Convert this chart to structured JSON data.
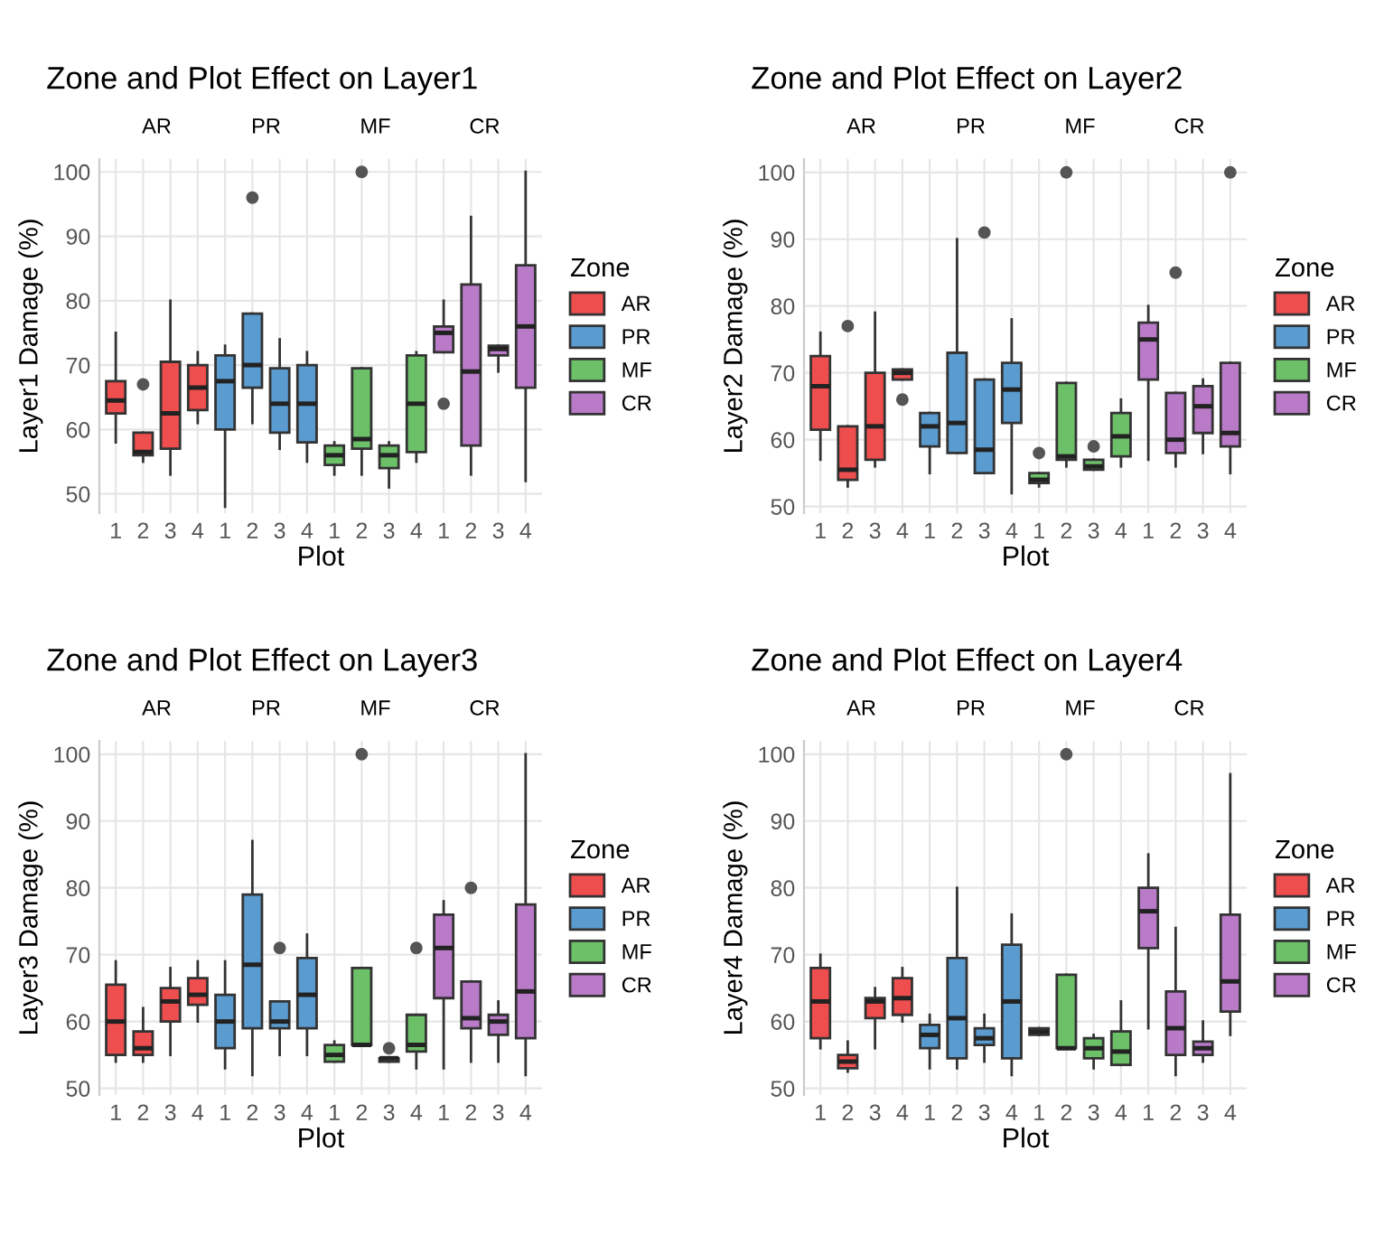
{
  "chart_data": [
    {
      "type": "box",
      "title": "Zone and Plot Effect on Layer1",
      "xlabel": "Plot",
      "ylabel": "Layer1 Damage (%)",
      "legend_title": "Zone",
      "legend": "right",
      "grid": true,
      "annotations": [
        "AR",
        "PR",
        "MF",
        "CR"
      ],
      "categories": [
        "1",
        "2",
        "3",
        "4",
        "1",
        "2",
        "3",
        "4",
        "1",
        "2",
        "3",
        "4",
        "1",
        "2",
        "3",
        "4"
      ],
      "ylim": [
        47,
        102
      ],
      "yticks": [
        50,
        60,
        70,
        80,
        90,
        100
      ],
      "series": [
        {
          "name": "AR",
          "color": "#ef4e4e",
          "boxes": [
            {
              "low": 58,
              "q1": 62.5,
              "median": 64.5,
              "q3": 67.5,
              "high": 75
            },
            {
              "low": 55,
              "q1": 56,
              "median": 56.5,
              "q3": 59.5,
              "high": 59.5,
              "outliers": [
                67
              ]
            },
            {
              "low": 53,
              "q1": 57,
              "median": 62.5,
              "q3": 70.5,
              "high": 80
            },
            {
              "low": 61,
              "q1": 63,
              "median": 66.5,
              "q3": 70,
              "high": 72
            },
            null,
            null,
            null,
            null,
            null,
            null,
            null,
            null,
            null,
            null,
            null,
            null
          ]
        },
        {
          "name": "PR",
          "color": "#5a9bd0",
          "boxes": [
            null,
            null,
            null,
            null,
            {
              "low": 48,
              "q1": 60,
              "median": 67.5,
              "q3": 71.5,
              "high": 73
            },
            {
              "low": 61,
              "q1": 66.5,
              "median": 70,
              "q3": 78,
              "high": 78,
              "outliers": [
                96
              ]
            },
            {
              "low": 57,
              "q1": 59.5,
              "median": 64,
              "q3": 69.5,
              "high": 74
            },
            {
              "low": 55,
              "q1": 58,
              "median": 64,
              "q3": 70,
              "high": 72
            },
            null,
            null,
            null,
            null,
            null,
            null,
            null,
            null
          ]
        },
        {
          "name": "MF",
          "color": "#6cc068",
          "boxes": [
            null,
            null,
            null,
            null,
            null,
            null,
            null,
            null,
            {
              "low": 53,
              "q1": 54.5,
              "median": 56,
              "q3": 57.5,
              "high": 58
            },
            {
              "low": 53,
              "q1": 57,
              "median": 58.5,
              "q3": 69.5,
              "high": 69.5,
              "outliers": [
                100
              ]
            },
            {
              "low": 51,
              "q1": 54,
              "median": 56,
              "q3": 57.5,
              "high": 58
            },
            {
              "low": 55,
              "q1": 56.5,
              "median": 64,
              "q3": 71.5,
              "high": 72
            },
            null,
            null,
            null,
            null
          ]
        },
        {
          "name": "CR",
          "color": "#b97ac8",
          "boxes": [
            null,
            null,
            null,
            null,
            null,
            null,
            null,
            null,
            null,
            null,
            null,
            null,
            {
              "low": 72,
              "q1": 72,
              "median": 75,
              "q3": 76,
              "high": 80,
              "outliers": [
                64
              ]
            },
            {
              "low": 53,
              "q1": 57.5,
              "median": 69,
              "q3": 82.5,
              "high": 93
            },
            {
              "low": 69,
              "q1": 71.5,
              "median": 72.5,
              "q3": 73,
              "high": 73
            },
            {
              "low": 52,
              "q1": 66.5,
              "median": 76,
              "q3": 85.5,
              "high": 100
            }
          ]
        }
      ]
    },
    {
      "type": "box",
      "title": "Zone and Plot Effect on Layer2",
      "xlabel": "Plot",
      "ylabel": "Layer2 Damage (%)",
      "legend_title": "Zone",
      "legend": "right",
      "grid": true,
      "annotations": [
        "AR",
        "PR",
        "MF",
        "CR"
      ],
      "categories": [
        "1",
        "2",
        "3",
        "4",
        "1",
        "2",
        "3",
        "4",
        "1",
        "2",
        "3",
        "4",
        "1",
        "2",
        "3",
        "4"
      ],
      "ylim": [
        49,
        102
      ],
      "yticks": [
        50,
        60,
        70,
        80,
        90,
        100
      ],
      "series": [
        {
          "name": "AR",
          "color": "#ef4e4e",
          "boxes": [
            {
              "low": 57,
              "q1": 61.5,
              "median": 68,
              "q3": 72.5,
              "high": 76
            },
            {
              "low": 53,
              "q1": 54,
              "median": 55.5,
              "q3": 62,
              "high": 62,
              "outliers": [
                77
              ]
            },
            {
              "low": 56,
              "q1": 57,
              "median": 62,
              "q3": 70,
              "high": 79
            },
            {
              "low": 69,
              "q1": 69,
              "median": 70,
              "q3": 70.5,
              "high": 70.5,
              "outliers": [
                66
              ]
            },
            null,
            null,
            null,
            null,
            null,
            null,
            null,
            null,
            null,
            null,
            null,
            null
          ]
        },
        {
          "name": "PR",
          "color": "#5a9bd0",
          "boxes": [
            null,
            null,
            null,
            null,
            {
              "low": 55,
              "q1": 59,
              "median": 62,
              "q3": 64,
              "high": 64
            },
            {
              "low": 58,
              "q1": 58,
              "median": 62.5,
              "q3": 73,
              "high": 90
            },
            {
              "low": 55,
              "q1": 55,
              "median": 58.5,
              "q3": 69,
              "high": 69,
              "outliers": [
                91
              ]
            },
            {
              "low": 52,
              "q1": 62.5,
              "median": 67.5,
              "q3": 71.5,
              "high": 78
            },
            null,
            null,
            null,
            null,
            null,
            null,
            null,
            null
          ]
        },
        {
          "name": "MF",
          "color": "#6cc068",
          "boxes": [
            null,
            null,
            null,
            null,
            null,
            null,
            null,
            null,
            {
              "low": 53,
              "q1": 53.5,
              "median": 54,
              "q3": 55,
              "high": 55,
              "outliers": [
                58
              ]
            },
            {
              "low": 56,
              "q1": 57,
              "median": 57.5,
              "q3": 68.5,
              "high": 68.5,
              "outliers": [
                100
              ]
            },
            {
              "low": 55.5,
              "q1": 55.5,
              "median": 56,
              "q3": 57,
              "high": 57,
              "outliers": [
                59
              ]
            },
            {
              "low": 56,
              "q1": 57.5,
              "median": 60.5,
              "q3": 64,
              "high": 66
            },
            null,
            null,
            null,
            null
          ]
        },
        {
          "name": "CR",
          "color": "#b97ac8",
          "boxes": [
            null,
            null,
            null,
            null,
            null,
            null,
            null,
            null,
            null,
            null,
            null,
            null,
            {
              "low": 57,
              "q1": 69,
              "median": 75,
              "q3": 77.5,
              "high": 80
            },
            {
              "low": 56,
              "q1": 58,
              "median": 60,
              "q3": 67,
              "high": 67,
              "outliers": [
                85
              ]
            },
            {
              "low": 58,
              "q1": 61,
              "median": 65,
              "q3": 68,
              "high": 69
            },
            {
              "low": 55,
              "q1": 59,
              "median": 61,
              "q3": 71.5,
              "high": 71.5,
              "outliers": [
                100
              ]
            }
          ]
        }
      ]
    },
    {
      "type": "box",
      "title": "Zone and Plot Effect on Layer3",
      "xlabel": "Plot",
      "ylabel": "Layer3 Damage (%)",
      "legend_title": "Zone",
      "legend": "right",
      "grid": true,
      "annotations": [
        "AR",
        "PR",
        "MF",
        "CR"
      ],
      "categories": [
        "1",
        "2",
        "3",
        "4",
        "1",
        "2",
        "3",
        "4",
        "1",
        "2",
        "3",
        "4",
        "1",
        "2",
        "3",
        "4"
      ],
      "ylim": [
        49,
        102
      ],
      "yticks": [
        50,
        60,
        70,
        80,
        90,
        100
      ],
      "series": [
        {
          "name": "AR",
          "color": "#ef4e4e",
          "boxes": [
            {
              "low": 54,
              "q1": 55,
              "median": 60,
              "q3": 65.5,
              "high": 69
            },
            {
              "low": 54,
              "q1": 55,
              "median": 56,
              "q3": 58.5,
              "high": 62
            },
            {
              "low": 55,
              "q1": 60,
              "median": 63,
              "q3": 65,
              "high": 68
            },
            {
              "low": 60,
              "q1": 62.5,
              "median": 64,
              "q3": 66.5,
              "high": 69
            },
            null,
            null,
            null,
            null,
            null,
            null,
            null,
            null,
            null,
            null,
            null,
            null
          ]
        },
        {
          "name": "PR",
          "color": "#5a9bd0",
          "boxes": [
            null,
            null,
            null,
            null,
            {
              "low": 53,
              "q1": 56,
              "median": 60,
              "q3": 64,
              "high": 69
            },
            {
              "low": 52,
              "q1": 59,
              "median": 68.5,
              "q3": 79,
              "high": 87
            },
            {
              "low": 55,
              "q1": 59,
              "median": 60,
              "q3": 63,
              "high": 63,
              "outliers": [
                71
              ]
            },
            {
              "low": 55,
              "q1": 59,
              "median": 64,
              "q3": 69.5,
              "high": 73
            },
            null,
            null,
            null,
            null,
            null,
            null,
            null,
            null
          ]
        },
        {
          "name": "MF",
          "color": "#6cc068",
          "boxes": [
            null,
            null,
            null,
            null,
            null,
            null,
            null,
            null,
            {
              "low": 54,
              "q1": 54,
              "median": 55,
              "q3": 56.5,
              "high": 57
            },
            {
              "low": 56.5,
              "q1": 56.5,
              "median": 56.5,
              "q3": 68,
              "high": 68,
              "outliers": [
                100
              ]
            },
            {
              "low": 54,
              "q1": 54,
              "median": 54.5,
              "q3": 54.5,
              "high": 54.5,
              "outliers": [
                56
              ]
            },
            {
              "low": 53,
              "q1": 55.5,
              "median": 56.5,
              "q3": 61,
              "high": 61,
              "outliers": [
                71
              ]
            },
            null,
            null,
            null,
            null
          ]
        },
        {
          "name": "CR",
          "color": "#b97ac8",
          "boxes": [
            null,
            null,
            null,
            null,
            null,
            null,
            null,
            null,
            null,
            null,
            null,
            null,
            {
              "low": 53,
              "q1": 63.5,
              "median": 71,
              "q3": 76,
              "high": 78
            },
            {
              "low": 54,
              "q1": 59,
              "median": 60.5,
              "q3": 66,
              "high": 66,
              "outliers": [
                80
              ]
            },
            {
              "low": 54,
              "q1": 58,
              "median": 60,
              "q3": 61,
              "high": 63
            },
            {
              "low": 52,
              "q1": 57.5,
              "median": 64.5,
              "q3": 77.5,
              "high": 100
            }
          ]
        }
      ]
    },
    {
      "type": "box",
      "title": "Zone and Plot Effect on Layer4",
      "xlabel": "Plot",
      "ylabel": "Layer4 Damage (%)",
      "legend_title": "Zone",
      "legend": "right",
      "grid": true,
      "annotations": [
        "AR",
        "PR",
        "MF",
        "CR"
      ],
      "categories": [
        "1",
        "2",
        "3",
        "4",
        "1",
        "2",
        "3",
        "4",
        "1",
        "2",
        "3",
        "4",
        "1",
        "2",
        "3",
        "4"
      ],
      "ylim": [
        49,
        102
      ],
      "yticks": [
        50,
        60,
        70,
        80,
        90,
        100
      ],
      "series": [
        {
          "name": "AR",
          "color": "#ef4e4e",
          "boxes": [
            {
              "low": 56,
              "q1": 57.5,
              "median": 63,
              "q3": 68,
              "high": 70
            },
            {
              "low": 52.5,
              "q1": 53,
              "median": 54,
              "q3": 55,
              "high": 57
            },
            {
              "low": 56,
              "q1": 60.5,
              "median": 63,
              "q3": 63.5,
              "high": 65
            },
            {
              "low": 60,
              "q1": 61,
              "median": 63.5,
              "q3": 66.5,
              "high": 68
            },
            null,
            null,
            null,
            null,
            null,
            null,
            null,
            null,
            null,
            null,
            null,
            null
          ]
        },
        {
          "name": "PR",
          "color": "#5a9bd0",
          "boxes": [
            null,
            null,
            null,
            null,
            {
              "low": 53,
              "q1": 56,
              "median": 58,
              "q3": 59.5,
              "high": 61
            },
            {
              "low": 53,
              "q1": 54.5,
              "median": 60.5,
              "q3": 69.5,
              "high": 80
            },
            {
              "low": 54,
              "q1": 56.5,
              "median": 57.5,
              "q3": 59,
              "high": 61
            },
            {
              "low": 52,
              "q1": 54.5,
              "median": 63,
              "q3": 71.5,
              "high": 76
            },
            null,
            null,
            null,
            null,
            null,
            null,
            null,
            null
          ]
        },
        {
          "name": "MF",
          "color": "#6cc068",
          "boxes": [
            null,
            null,
            null,
            null,
            null,
            null,
            null,
            null,
            {
              "low": 58,
              "q1": 58,
              "median": 58.5,
              "q3": 59,
              "high": 59
            },
            {
              "low": 56,
              "q1": 56,
              "median": 56,
              "q3": 67,
              "high": 67,
              "outliers": [
                100
              ]
            },
            {
              "low": 53,
              "q1": 54.5,
              "median": 56,
              "q3": 57.5,
              "high": 58
            },
            {
              "low": 53.5,
              "q1": 53.5,
              "median": 55.5,
              "q3": 58.5,
              "high": 63
            },
            null,
            null,
            null,
            null
          ]
        },
        {
          "name": "CR",
          "color": "#b97ac8",
          "boxes": [
            null,
            null,
            null,
            null,
            null,
            null,
            null,
            null,
            null,
            null,
            null,
            null,
            {
              "low": 59,
              "q1": 71,
              "median": 76.5,
              "q3": 80,
              "high": 85
            },
            {
              "low": 52,
              "q1": 55,
              "median": 59,
              "q3": 64.5,
              "high": 74
            },
            {
              "low": 54,
              "q1": 55,
              "median": 56,
              "q3": 57,
              "high": 60
            },
            {
              "low": 58,
              "q1": 61.5,
              "median": 66,
              "q3": 76,
              "high": 97
            }
          ]
        }
      ]
    }
  ]
}
